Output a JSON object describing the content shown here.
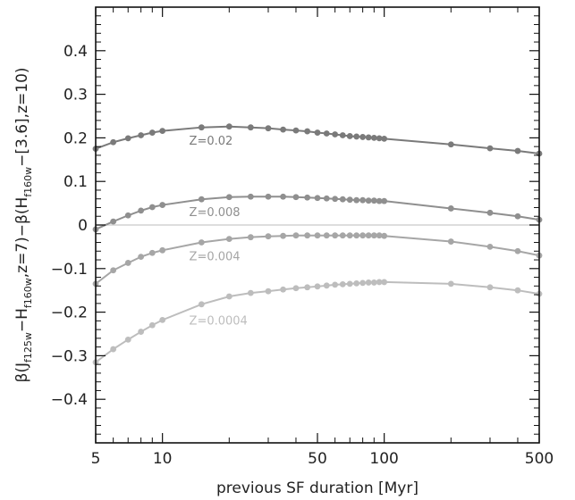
{
  "chart_data": {
    "type": "line",
    "xlabel": "previous SF duration [Myr]",
    "ylabel_parts": {
      "beta1": "β(J",
      "sub1": "f125w",
      "mid1": "−H",
      "sub2": "f160w",
      "mid2": ",z=7)−β(H",
      "sub3": "f160w",
      "mid3": "−[3.6],z=10)"
    },
    "x_scale": "log",
    "xlim": [
      5,
      500
    ],
    "ylim": [
      -0.5,
      0.5
    ],
    "x_ticks": [
      5,
      10,
      50,
      100,
      500
    ],
    "x_tick_labels": [
      "5",
      "10",
      "50",
      "100",
      "500"
    ],
    "y_ticks": [
      -0.4,
      -0.3,
      -0.2,
      -0.1,
      0,
      0.1,
      0.2,
      0.3,
      0.4
    ],
    "y_tick_labels": [
      "−0.4",
      "−0.3",
      "−0.2",
      "−0.1",
      "0",
      "0.1",
      "0.2",
      "0.3",
      "0.4"
    ],
    "zero_line": true,
    "x": [
      5,
      6,
      7,
      8,
      9,
      10,
      15,
      20,
      25,
      30,
      35,
      40,
      45,
      50,
      55,
      60,
      65,
      70,
      75,
      80,
      85,
      90,
      95,
      100,
      200,
      300,
      400,
      500
    ],
    "series": [
      {
        "name": "Z=0.02",
        "color": "#7a7a7a",
        "values": [
          0.175,
          0.19,
          0.199,
          0.206,
          0.212,
          0.216,
          0.224,
          0.226,
          0.224,
          0.222,
          0.219,
          0.217,
          0.215,
          0.212,
          0.21,
          0.208,
          0.206,
          0.204,
          0.203,
          0.202,
          0.201,
          0.2,
          0.199,
          0.198,
          0.185,
          0.176,
          0.17,
          0.164
        ]
      },
      {
        "name": "Z=0.008",
        "color": "#8f8f8f",
        "values": [
          -0.01,
          0.008,
          0.022,
          0.033,
          0.041,
          0.046,
          0.059,
          0.064,
          0.065,
          0.065,
          0.065,
          0.064,
          0.063,
          0.062,
          0.061,
          0.06,
          0.059,
          0.058,
          0.057,
          0.057,
          0.056,
          0.056,
          0.055,
          0.055,
          0.038,
          0.028,
          0.02,
          0.012
        ]
      },
      {
        "name": "Z=0.004",
        "color": "#a6a6a6",
        "values": [
          -0.135,
          -0.104,
          -0.087,
          -0.073,
          -0.064,
          -0.058,
          -0.04,
          -0.032,
          -0.028,
          -0.026,
          -0.025,
          -0.024,
          -0.024,
          -0.024,
          -0.024,
          -0.024,
          -0.024,
          -0.024,
          -0.024,
          -0.024,
          -0.024,
          -0.024,
          -0.024,
          -0.025,
          -0.038,
          -0.05,
          -0.06,
          -0.07
        ]
      },
      {
        "name": "Z=0.0004",
        "color": "#bdbdbd",
        "values": [
          -0.315,
          -0.285,
          -0.263,
          -0.245,
          -0.23,
          -0.218,
          -0.182,
          -0.164,
          -0.156,
          -0.152,
          -0.148,
          -0.145,
          -0.143,
          -0.141,
          -0.139,
          -0.137,
          -0.136,
          -0.135,
          -0.134,
          -0.133,
          -0.132,
          -0.132,
          -0.131,
          -0.131,
          -0.135,
          -0.143,
          -0.15,
          -0.158
        ]
      }
    ]
  }
}
